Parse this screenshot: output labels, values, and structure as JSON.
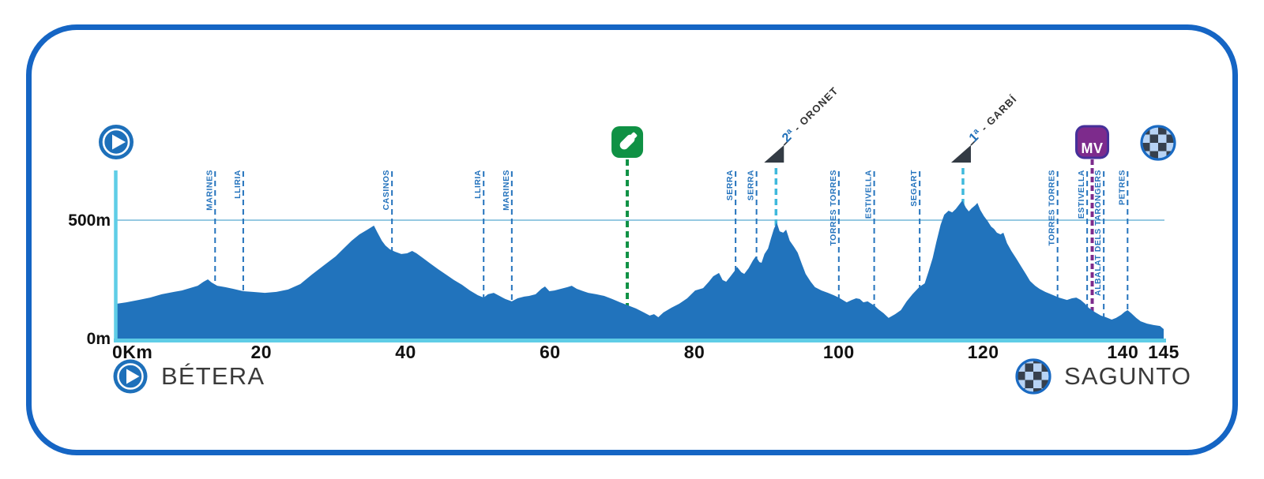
{
  "footer": {
    "start": "BÉTERA",
    "finish": "SAGUNTO"
  },
  "colors": {
    "frame_border": "#1565C4",
    "profile_fill": "#2173BC",
    "axis_cyan": "#5FCDE6",
    "gridline": "#74B7D9",
    "waypoint_blue": "#2473BD",
    "climb_cyan": "#3FB9DC",
    "climb_icon_dark": "#333B44",
    "climb_cat_blue": "#1F6FB8",
    "climb_text_dark": "#333333",
    "feed_green": "#0F9144",
    "sprint_purple": "#7D2B8C",
    "sprint_border": "#45309A",
    "icon_blue": "#1E70BA",
    "ring_blue": "#1A6AC2",
    "checker_dark": "#36404D",
    "checker_light": "#B7D3F4",
    "tick_text": "#111111"
  },
  "chart_data": {
    "type": "area",
    "title": "",
    "xlabel": "Km",
    "ylabel": "m",
    "x_range": [
      0,
      145
    ],
    "y_range": [
      0,
      700
    ],
    "grid": "single horizontal line at 500m",
    "legend": "none",
    "x_ticks": [
      {
        "km": 0,
        "label": "0Km"
      },
      {
        "km": 20,
        "label": "20"
      },
      {
        "km": 40,
        "label": "40"
      },
      {
        "km": 60,
        "label": "60"
      },
      {
        "km": 80,
        "label": "80"
      },
      {
        "km": 100,
        "label": "100"
      },
      {
        "km": 120,
        "label": "120"
      },
      {
        "km": 140,
        "label": "140"
      },
      {
        "km": 145,
        "label": "145"
      }
    ],
    "y_ticks": [
      {
        "label": "500m",
        "value": 500
      },
      {
        "label": "0m",
        "value": 0
      }
    ],
    "waypoints": [
      {
        "label": "MARINES",
        "km": 13.6
      },
      {
        "label": "LLIRIA",
        "km": 17.5
      },
      {
        "label": "CASINOS",
        "km": 38.1
      },
      {
        "label": "LLIRIA",
        "km": 50.8
      },
      {
        "label": "MARINES",
        "km": 54.7
      },
      {
        "label": "SERRA",
        "km": 85.7
      },
      {
        "label": "SERRA",
        "km": 88.6
      },
      {
        "label": "TORRES TORRES",
        "km": 100
      },
      {
        "label": "ESTIVELLA",
        "km": 104.9
      },
      {
        "label": "SEGART",
        "km": 111.2
      },
      {
        "label": "TORRES TORRES",
        "km": 130.3
      },
      {
        "label": "ESTIVELLA",
        "km": 134.4
      },
      {
        "label": "ALBALAT DELS TARONGERS",
        "km": 136.7
      },
      {
        "label": "PETRES",
        "km": 140
      }
    ],
    "climbs": [
      {
        "category": "2ª",
        "name": "- ORONET",
        "km": 91.3,
        "summit_elev_m": 490
      },
      {
        "category": "1ª",
        "name": "- GARBÍ",
        "km": 117.2,
        "summit_elev_m": 583
      }
    ],
    "markers": [
      {
        "type": "feed-zone",
        "label": "",
        "km": 70.7
      },
      {
        "type": "intermediate-sprint",
        "label": "MV",
        "km": 135.1
      }
    ],
    "profile": [
      [
        0,
        147
      ],
      [
        1.3,
        153
      ],
      [
        3,
        163
      ],
      [
        4.6,
        173
      ],
      [
        6.2,
        187
      ],
      [
        7.9,
        197
      ],
      [
        9,
        203
      ],
      [
        10.1,
        213
      ],
      [
        11.2,
        223
      ],
      [
        12,
        240
      ],
      [
        12.6,
        250
      ],
      [
        13.1,
        237
      ],
      [
        13.9,
        223
      ],
      [
        15,
        217
      ],
      [
        16.1,
        210
      ],
      [
        17.5,
        200
      ],
      [
        18.8,
        197
      ],
      [
        20.5,
        193
      ],
      [
        22.1,
        197
      ],
      [
        23.7,
        207
      ],
      [
        25.4,
        230
      ],
      [
        27,
        270
      ],
      [
        28.7,
        310
      ],
      [
        30.3,
        347
      ],
      [
        31.4,
        380
      ],
      [
        32.5,
        413
      ],
      [
        33.6,
        440
      ],
      [
        34.7,
        460
      ],
      [
        35.6,
        477
      ],
      [
        36.1,
        447
      ],
      [
        36.7,
        413
      ],
      [
        37.2,
        393
      ],
      [
        37.8,
        377
      ],
      [
        38.5,
        367
      ],
      [
        39.4,
        357
      ],
      [
        40.2,
        360
      ],
      [
        40.9,
        370
      ],
      [
        41.5,
        360
      ],
      [
        42.4,
        340
      ],
      [
        43.4,
        317
      ],
      [
        44.5,
        293
      ],
      [
        45.6,
        270
      ],
      [
        46.7,
        247
      ],
      [
        47.8,
        227
      ],
      [
        48.9,
        203
      ],
      [
        50,
        183
      ],
      [
        50.8,
        173
      ],
      [
        51.4,
        187
      ],
      [
        52.2,
        193
      ],
      [
        53,
        180
      ],
      [
        53.8,
        167
      ],
      [
        54.7,
        157
      ],
      [
        55.5,
        170
      ],
      [
        56.4,
        177
      ],
      [
        57.1,
        180
      ],
      [
        58,
        187
      ],
      [
        58.8,
        210
      ],
      [
        59.3,
        220
      ],
      [
        59.9,
        200
      ],
      [
        60.6,
        203
      ],
      [
        61.5,
        210
      ],
      [
        62.4,
        217
      ],
      [
        63,
        223
      ],
      [
        63.7,
        210
      ],
      [
        64.6,
        200
      ],
      [
        65.3,
        193
      ],
      [
        66.4,
        187
      ],
      [
        67.5,
        180
      ],
      [
        68.6,
        167
      ],
      [
        69.7,
        153
      ],
      [
        70.8,
        140
      ],
      [
        71.9,
        127
      ],
      [
        73,
        110
      ],
      [
        73.8,
        97
      ],
      [
        74.4,
        103
      ],
      [
        75,
        90
      ],
      [
        75.7,
        110
      ],
      [
        76.8,
        130
      ],
      [
        77.9,
        147
      ],
      [
        79,
        170
      ],
      [
        80.1,
        203
      ],
      [
        81.2,
        213
      ],
      [
        82,
        240
      ],
      [
        82.6,
        263
      ],
      [
        83.4,
        277
      ],
      [
        83.9,
        247
      ],
      [
        84.4,
        240
      ],
      [
        85,
        263
      ],
      [
        85.6,
        287
      ],
      [
        85.9,
        303
      ],
      [
        86.5,
        280
      ],
      [
        86.9,
        273
      ],
      [
        87.5,
        297
      ],
      [
        88.1,
        330
      ],
      [
        88.5,
        347
      ],
      [
        89,
        323
      ],
      [
        89.3,
        320
      ],
      [
        89.7,
        357
      ],
      [
        90.2,
        380
      ],
      [
        90.6,
        423
      ],
      [
        91,
        463
      ],
      [
        91.4,
        490
      ],
      [
        91.8,
        453
      ],
      [
        92.3,
        447
      ],
      [
        92.7,
        460
      ],
      [
        93.2,
        413
      ],
      [
        93.8,
        387
      ],
      [
        94.3,
        363
      ],
      [
        94.9,
        313
      ],
      [
        95.4,
        273
      ],
      [
        96.1,
        240
      ],
      [
        96.7,
        217
      ],
      [
        97.6,
        203
      ],
      [
        98.5,
        193
      ],
      [
        99.3,
        183
      ],
      [
        100,
        173
      ],
      [
        100.7,
        160
      ],
      [
        101.1,
        153
      ],
      [
        101.8,
        163
      ],
      [
        102.4,
        170
      ],
      [
        102.9,
        167
      ],
      [
        103.4,
        153
      ],
      [
        104,
        157
      ],
      [
        104.5,
        147
      ],
      [
        105,
        137
      ],
      [
        105.5,
        123
      ],
      [
        106.2,
        107
      ],
      [
        106.9,
        87
      ],
      [
        107.8,
        103
      ],
      [
        108.6,
        120
      ],
      [
        109.4,
        157
      ],
      [
        110.2,
        187
      ],
      [
        111,
        213
      ],
      [
        111.4,
        223
      ],
      [
        111.9,
        233
      ],
      [
        112.4,
        280
      ],
      [
        113,
        340
      ],
      [
        113.5,
        407
      ],
      [
        114.1,
        480
      ],
      [
        114.6,
        523
      ],
      [
        115.2,
        540
      ],
      [
        115.7,
        533
      ],
      [
        116.2,
        547
      ],
      [
        116.7,
        567
      ],
      [
        117.1,
        583
      ],
      [
        117.6,
        553
      ],
      [
        118,
        537
      ],
      [
        118.4,
        550
      ],
      [
        118.9,
        563
      ],
      [
        119.2,
        573
      ],
      [
        119.6,
        543
      ],
      [
        120.1,
        517
      ],
      [
        120.6,
        497
      ],
      [
        121.1,
        473
      ],
      [
        121.5,
        463
      ],
      [
        121.9,
        447
      ],
      [
        122.4,
        440
      ],
      [
        122.8,
        447
      ],
      [
        123.3,
        403
      ],
      [
        123.9,
        370
      ],
      [
        124.6,
        337
      ],
      [
        125.2,
        307
      ],
      [
        125.9,
        273
      ],
      [
        126.5,
        243
      ],
      [
        127.2,
        223
      ],
      [
        127.8,
        210
      ],
      [
        128.6,
        197
      ],
      [
        129.4,
        187
      ],
      [
        130.5,
        173
      ],
      [
        131.6,
        163
      ],
      [
        132.3,
        170
      ],
      [
        132.9,
        173
      ],
      [
        133.5,
        163
      ],
      [
        134.1,
        147
      ],
      [
        134.6,
        130
      ],
      [
        135.4,
        113
      ],
      [
        136.3,
        97
      ],
      [
        137,
        90
      ],
      [
        137.8,
        80
      ],
      [
        138.4,
        87
      ],
      [
        139.1,
        100
      ],
      [
        139.6,
        113
      ],
      [
        140,
        120
      ],
      [
        140.5,
        107
      ],
      [
        141.2,
        87
      ],
      [
        141.8,
        73
      ],
      [
        142.7,
        63
      ],
      [
        143.6,
        57
      ],
      [
        144.5,
        53
      ],
      [
        145,
        40
      ]
    ]
  }
}
